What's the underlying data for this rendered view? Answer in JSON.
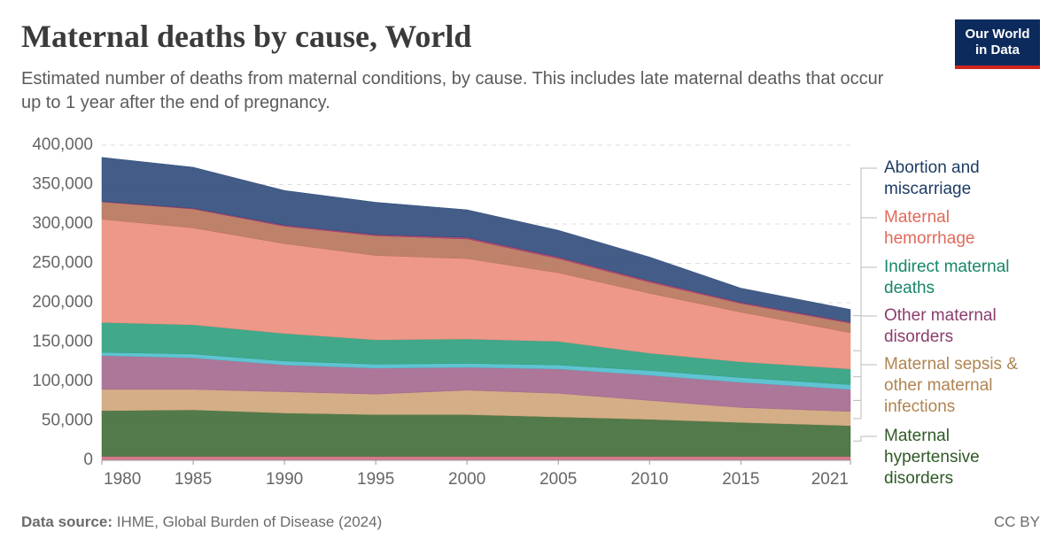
{
  "title": "Maternal deaths by cause, World",
  "subtitle": "Estimated number of deaths from maternal conditions, by cause. This includes late maternal deaths that occur up to 1 year after the end of pregnancy.",
  "logo": "Our World in Data",
  "source_label": "Data source:",
  "source": "IHME, Global Burden of Disease (2024)",
  "license": "CC BY",
  "chart_data": {
    "type": "stacked-area",
    "x": [
      1980,
      1985,
      1990,
      1995,
      2000,
      2005,
      2010,
      2015,
      2021
    ],
    "xlim": [
      1980,
      2021
    ],
    "xticks": [
      1980,
      1985,
      1990,
      1995,
      2000,
      2005,
      2010,
      2015,
      2021
    ],
    "ylim": [
      0,
      400000
    ],
    "yticks": [
      0,
      {
        "value": 50000,
        "label": "50,000"
      },
      {
        "value": 100000,
        "label": "100,000"
      },
      {
        "value": 150000,
        "label": "150,000"
      },
      {
        "value": 200000,
        "label": "200,000"
      },
      {
        "value": 250000,
        "label": "250,000"
      },
      {
        "value": 300000,
        "label": "300,000"
      },
      {
        "value": 350000,
        "label": "350,000"
      },
      {
        "value": 400000,
        "label": "400,000"
      }
    ],
    "grid": true,
    "series": [
      {
        "color": "#d0697f",
        "values": [
          5000,
          5000,
          5000,
          5000,
          5000,
          5000,
          5000,
          5000,
          5000
        ]
      },
      {
        "name": "Maternal hypertensive disorders",
        "color": "#3f6b36",
        "label_color": "#2f5a26",
        "values": [
          58000,
          59000,
          55000,
          53000,
          53000,
          50000,
          47000,
          43000,
          39000
        ]
      },
      {
        "name": "Maternal sepsis & other maternal infections",
        "color": "#cfa57a",
        "label_color": "#b08450",
        "values": [
          27000,
          26000,
          27000,
          26000,
          31000,
          30000,
          24000,
          19000,
          18000
        ]
      },
      {
        "name": "Other maternal disorders",
        "color": "#a3688e",
        "label_color": "#8b3d6d",
        "values": [
          43000,
          40000,
          34000,
          33000,
          29000,
          31000,
          32000,
          32000,
          28000
        ]
      },
      {
        "color": "#4fbccc",
        "values": [
          4000,
          5000,
          5000,
          5000,
          5000,
          5000,
          6000,
          6000,
          6000
        ]
      },
      {
        "name": "Indirect maternal deaths",
        "color": "#2e9e7d",
        "label_color": "#17866a",
        "values": [
          38000,
          37000,
          35000,
          31000,
          31000,
          30000,
          22000,
          20000,
          20000
        ]
      },
      {
        "name": "Maternal hemorrhage",
        "color": "#ec8d7c",
        "label_color": "#e06a5a",
        "values": [
          131000,
          123000,
          114000,
          107000,
          102000,
          87000,
          76000,
          63000,
          46000
        ]
      },
      {
        "color": "#b67459",
        "values": [
          22000,
          24000,
          22000,
          25000,
          25000,
          18000,
          14000,
          11000,
          12000
        ]
      },
      {
        "color": "#a23a6a",
        "values": [
          500,
          1000,
          1500,
          1500,
          2000,
          2000,
          2000,
          1500,
          1500
        ]
      },
      {
        "name": "Abortion and miscarriage",
        "color": "#2f4b7b",
        "label_color": "#1d3d63",
        "values": [
          56000,
          52000,
          44000,
          41000,
          35000,
          34000,
          30000,
          18000,
          16000
        ]
      }
    ]
  }
}
